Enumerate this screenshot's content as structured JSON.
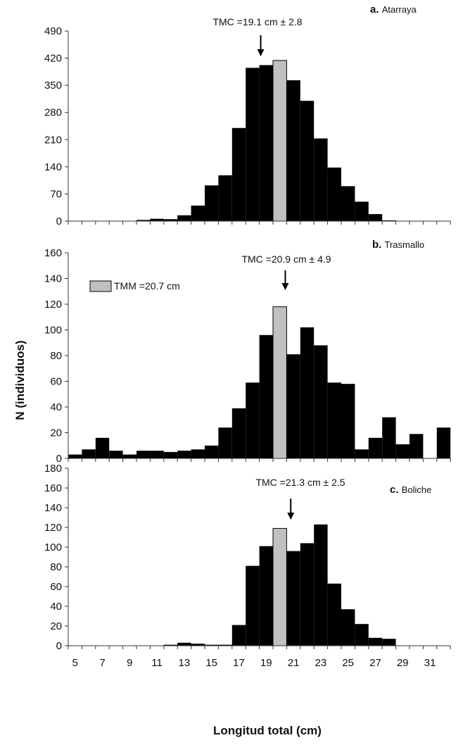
{
  "figure": {
    "ylabel": "N (individuos)",
    "xlabel": "Longitud total (cm)",
    "legend_label": "TMM =20.7 cm",
    "x_tick_labels": [
      "5",
      "7",
      "9",
      "11",
      "13",
      "15",
      "17",
      "19",
      "21",
      "23",
      "25",
      "27",
      "29",
      "31"
    ]
  },
  "colors": {
    "bar": "#000000",
    "highlight": "#c0c0c0",
    "axis": "#333333"
  },
  "chart_data": [
    {
      "type": "bar",
      "panel_letter": "a.",
      "panel_name": "Atarraya",
      "categories": [
        5,
        6,
        7,
        8,
        9,
        10,
        11,
        12,
        13,
        14,
        15,
        16,
        17,
        18,
        19,
        20,
        21,
        22,
        23,
        24,
        25,
        26,
        27,
        28,
        29,
        30,
        31,
        32
      ],
      "values": [
        0,
        0,
        0,
        0,
        0,
        3,
        6,
        5,
        15,
        40,
        92,
        118,
        240,
        395,
        402,
        414,
        363,
        310,
        213,
        138,
        90,
        50,
        18,
        2,
        0,
        0,
        0,
        0
      ],
      "highlight_category": 20,
      "ylim": [
        0,
        490
      ],
      "yticks": [
        0,
        70,
        140,
        210,
        280,
        350,
        420,
        490
      ],
      "annotation": {
        "text": "TMC =19.1 cm ± 2.8",
        "x": 19.1
      }
    },
    {
      "type": "bar",
      "panel_letter": "b.",
      "panel_name": "Trasmallo",
      "categories": [
        5,
        6,
        7,
        8,
        9,
        10,
        11,
        12,
        13,
        14,
        15,
        16,
        17,
        18,
        19,
        20,
        21,
        22,
        23,
        24,
        25,
        26,
        27,
        28,
        29,
        30,
        31,
        32
      ],
      "values": [
        3,
        7,
        16,
        6,
        3,
        6,
        6,
        5,
        6,
        7,
        10,
        24,
        39,
        59,
        96,
        118,
        81,
        102,
        88,
        59,
        58,
        7,
        16,
        32,
        11,
        19,
        0,
        24
      ],
      "highlight_category": 20,
      "ylim": [
        0,
        160
      ],
      "yticks": [
        0,
        20,
        40,
        60,
        80,
        100,
        120,
        140,
        160
      ],
      "annotation": {
        "text": "TMC =20.9 cm ± 4.9",
        "x": 20.9
      }
    },
    {
      "type": "bar",
      "panel_letter": "c.",
      "panel_name": "Boliche",
      "categories": [
        5,
        6,
        7,
        8,
        9,
        10,
        11,
        12,
        13,
        14,
        15,
        16,
        17,
        18,
        19,
        20,
        21,
        22,
        23,
        24,
        25,
        26,
        27,
        28,
        29,
        30,
        31,
        32
      ],
      "values": [
        0,
        0,
        0,
        0,
        0,
        0,
        0,
        1,
        3,
        2,
        1,
        1,
        21,
        81,
        101,
        119,
        96,
        104,
        123,
        63,
        37,
        22,
        8,
        7,
        0,
        0,
        0,
        0
      ],
      "highlight_category": 20,
      "ylim": [
        0,
        180
      ],
      "yticks": [
        0,
        20,
        40,
        60,
        80,
        100,
        120,
        140,
        160,
        180
      ],
      "annotation": {
        "text": "TMC =21.3 cm ± 2.5",
        "x": 21.3
      }
    }
  ]
}
